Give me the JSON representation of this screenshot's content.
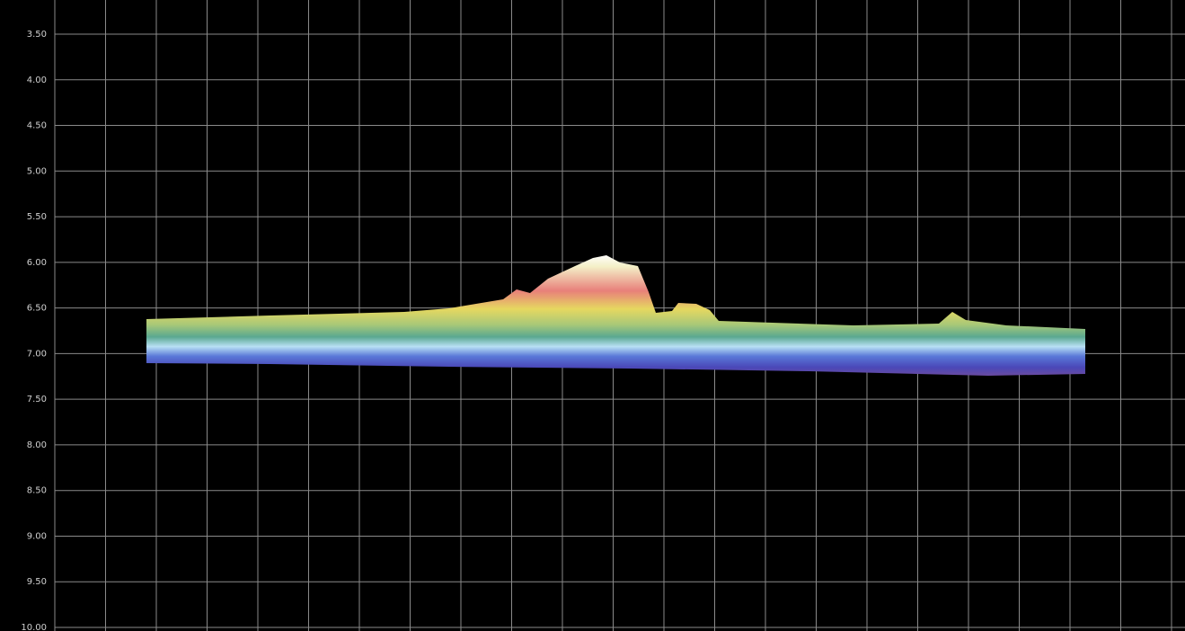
{
  "chart_data": {
    "type": "profile",
    "ylim": [
      3.5,
      10
    ],
    "yticks": [
      {
        "value": 3.5,
        "label": "3.50"
      },
      {
        "value": 4,
        "label": "4.00"
      },
      {
        "value": 4.5,
        "label": "4.50"
      },
      {
        "value": 5,
        "label": "5.00"
      },
      {
        "value": 5.5,
        "label": "5.50"
      },
      {
        "value": 6,
        "label": "6.00"
      },
      {
        "value": 6.5,
        "label": "6.50"
      },
      {
        "value": 7,
        "label": "7.00"
      },
      {
        "value": 7.5,
        "label": "7.50"
      },
      {
        "value": 8,
        "label": "8.00"
      },
      {
        "value": 8.5,
        "label": "8.50"
      },
      {
        "value": 9,
        "label": "9.00"
      },
      {
        "value": 9.5,
        "label": "9.50"
      },
      {
        "value": 10,
        "label": "10.00"
      }
    ],
    "y_inverted": true,
    "grid": true
  }
}
